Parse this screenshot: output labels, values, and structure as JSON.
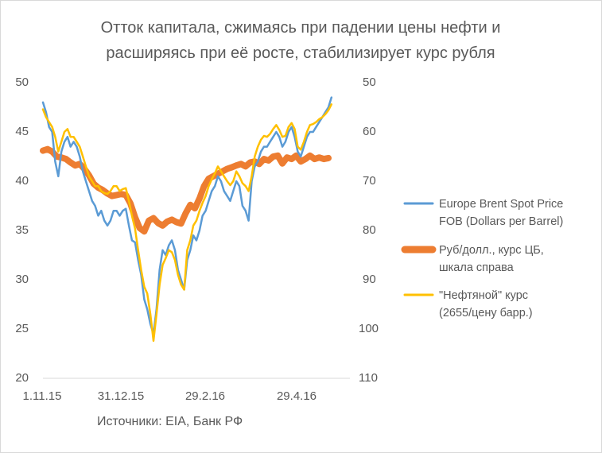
{
  "chart_data": {
    "type": "line",
    "title_lines": [
      "Отток капитала, сжимаясь при падении цены нефти и",
      "расширяясь при её росте, стабилизирует курс рубля"
    ],
    "source": "Источники: EIA, Банк РФ",
    "x_tick_labels": [
      "1.11.15",
      "31.12.15",
      "29.2.16",
      "29.4.16"
    ],
    "y_left_ticks": [
      50,
      45,
      40,
      35,
      30,
      25,
      20
    ],
    "y_right_ticks": [
      50,
      60,
      70,
      80,
      90,
      100,
      110
    ],
    "y_left_range": [
      20,
      50
    ],
    "y_right_range": [
      110,
      50
    ],
    "y_right_inverted": true,
    "grid": false,
    "legend_position": "right",
    "series": [
      {
        "name": "Europe Brent Spot Price FOB (Dollars per Barrel)",
        "legend_lines": [
          "Europe Brent Spot Price",
          "FOB (Dollars per Barrel)"
        ],
        "axis": "left",
        "color": "#5b9bd5",
        "x": [
          0,
          2,
          4,
          6,
          8,
          10,
          12,
          14,
          16,
          18,
          20,
          22,
          24,
          26,
          28,
          30,
          32,
          34,
          36,
          38,
          40,
          42,
          44,
          46,
          48,
          50,
          52,
          54,
          56,
          58,
          60,
          62,
          64,
          66,
          68,
          70,
          72,
          74,
          76,
          78,
          80,
          82,
          84,
          86,
          88,
          90,
          92,
          94,
          96,
          98,
          100,
          102,
          104,
          106,
          108,
          110,
          112,
          114,
          116,
          118,
          120,
          122,
          124,
          126,
          128,
          130,
          132,
          134,
          136,
          138,
          140,
          142,
          144,
          146,
          148,
          150,
          152,
          154,
          156,
          158,
          160,
          162,
          164,
          166,
          168,
          170,
          172,
          174,
          176,
          178,
          180,
          182,
          184,
          186,
          188
        ],
        "values": [
          48,
          47,
          45.5,
          45,
          42,
          40.5,
          43,
          44,
          44.5,
          43.5,
          44,
          43.5,
          42.5,
          41,
          40,
          39,
          38,
          37.5,
          36.5,
          37,
          36,
          35.5,
          36,
          37,
          37,
          36.5,
          37,
          37.2,
          35.5,
          34,
          33.8,
          32,
          30.5,
          28,
          27,
          25.5,
          24.5,
          27,
          31,
          33,
          32.5,
          33.5,
          34,
          33,
          31,
          30,
          29,
          32,
          33,
          34.5,
          34,
          35,
          36.5,
          37,
          38,
          39,
          39.5,
          40.5,
          40,
          39,
          38.5,
          38,
          39,
          40,
          39.5,
          37.5,
          37,
          36,
          40,
          41.5,
          42,
          43,
          43.5,
          43.5,
          44,
          44.5,
          45,
          44.5,
          43.5,
          44,
          45,
          45.5,
          44.5,
          43,
          42.5,
          43.5,
          44.5,
          45,
          45,
          45.5,
          46,
          46.5,
          47,
          47.5,
          48.5
        ]
      },
      {
        "name": "Руб/долл., курс ЦБ, шкала справа",
        "legend_lines": [
          "Руб/долл., курс ЦБ,",
          "шкала справа"
        ],
        "axis": "right",
        "color": "#ed7d31",
        "x": [
          0,
          3,
          6,
          9,
          12,
          15,
          18,
          21,
          24,
          27,
          30,
          33,
          36,
          39,
          42,
          45,
          48,
          51,
          54,
          57,
          60,
          63,
          66,
          69,
          72,
          75,
          78,
          81,
          84,
          87,
          90,
          93,
          96,
          99,
          102,
          105,
          108,
          111,
          114,
          117,
          120,
          123,
          126,
          129,
          132,
          135,
          138,
          141,
          144,
          147,
          150,
          153,
          156,
          159,
          162,
          165,
          168,
          171,
          174,
          177,
          180,
          183,
          186
        ],
        "values": [
          63.8,
          63.5,
          64,
          65,
          65.2,
          65.5,
          66.2,
          66.8,
          66.5,
          67.5,
          68.8,
          70.5,
          71.3,
          71.8,
          72.5,
          73,
          72.8,
          72.6,
          72.8,
          74.5,
          77.3,
          79.5,
          80.2,
          78,
          77.5,
          78.5,
          79,
          78.2,
          77.8,
          78.3,
          78.6,
          76.5,
          74.8,
          75.5,
          73.5,
          71,
          69.5,
          69,
          68.5,
          68,
          67.5,
          67.2,
          66.8,
          66.5,
          67,
          66.2,
          66,
          66.5,
          65.5,
          65.8,
          65,
          64.8,
          66.4,
          65.2,
          65.5,
          64.8,
          66,
          65.5,
          64.8,
          65.5,
          65.2,
          65.5,
          65.3
        ]
      },
      {
        "name": "\"Нефтяной\" курс (2655/цену барр.)",
        "legend_lines": [
          "\"Нефтяной\" курс",
          "(2655/цену барр.)"
        ],
        "axis": "left",
        "color": "#ffc000",
        "x": [
          0,
          2,
          4,
          6,
          8,
          10,
          12,
          14,
          16,
          18,
          20,
          22,
          24,
          26,
          28,
          30,
          32,
          34,
          36,
          38,
          40,
          42,
          44,
          46,
          48,
          50,
          52,
          54,
          56,
          58,
          60,
          62,
          64,
          66,
          68,
          70,
          72,
          74,
          76,
          78,
          80,
          82,
          84,
          86,
          88,
          90,
          92,
          94,
          96,
          98,
          100,
          102,
          104,
          106,
          108,
          110,
          112,
          114,
          116,
          118,
          120,
          122,
          124,
          126,
          128,
          130,
          132,
          134,
          136,
          138,
          140,
          142,
          144,
          146,
          148,
          150,
          152,
          154,
          156,
          158,
          160,
          162,
          164,
          166,
          168,
          170,
          172,
          174,
          176,
          178,
          180,
          182,
          184,
          186,
          188
        ],
        "values": [
          47.3,
          46.5,
          46,
          45.5,
          44.5,
          43,
          44,
          45,
          45.3,
          44.5,
          44.5,
          44,
          43.5,
          42.5,
          41.5,
          40.5,
          40,
          39.5,
          39.5,
          39,
          38.8,
          38.7,
          39,
          39.5,
          39.5,
          39,
          39.2,
          39.3,
          38,
          36.5,
          35.2,
          33,
          31,
          29.3,
          28.6,
          26.5,
          23.8,
          26.5,
          29.5,
          31.5,
          32.2,
          33,
          32.8,
          32,
          30.5,
          29.5,
          29,
          33,
          34,
          35.5,
          36,
          37,
          37.8,
          38.5,
          39.5,
          40.2,
          40.8,
          41.5,
          41,
          40.5,
          40,
          39.6,
          40,
          41,
          40.5,
          39.8,
          39.5,
          39,
          40.5,
          42.5,
          43.5,
          44.2,
          44.6,
          44.5,
          44.8,
          45.3,
          45.7,
          45.2,
          44.5,
          44.6,
          45.5,
          45.9,
          45.3,
          43.5,
          43.2,
          44,
          45,
          45.7,
          45.8,
          46,
          46.3,
          46.5,
          46.8,
          47.2,
          47.8
        ]
      }
    ]
  }
}
